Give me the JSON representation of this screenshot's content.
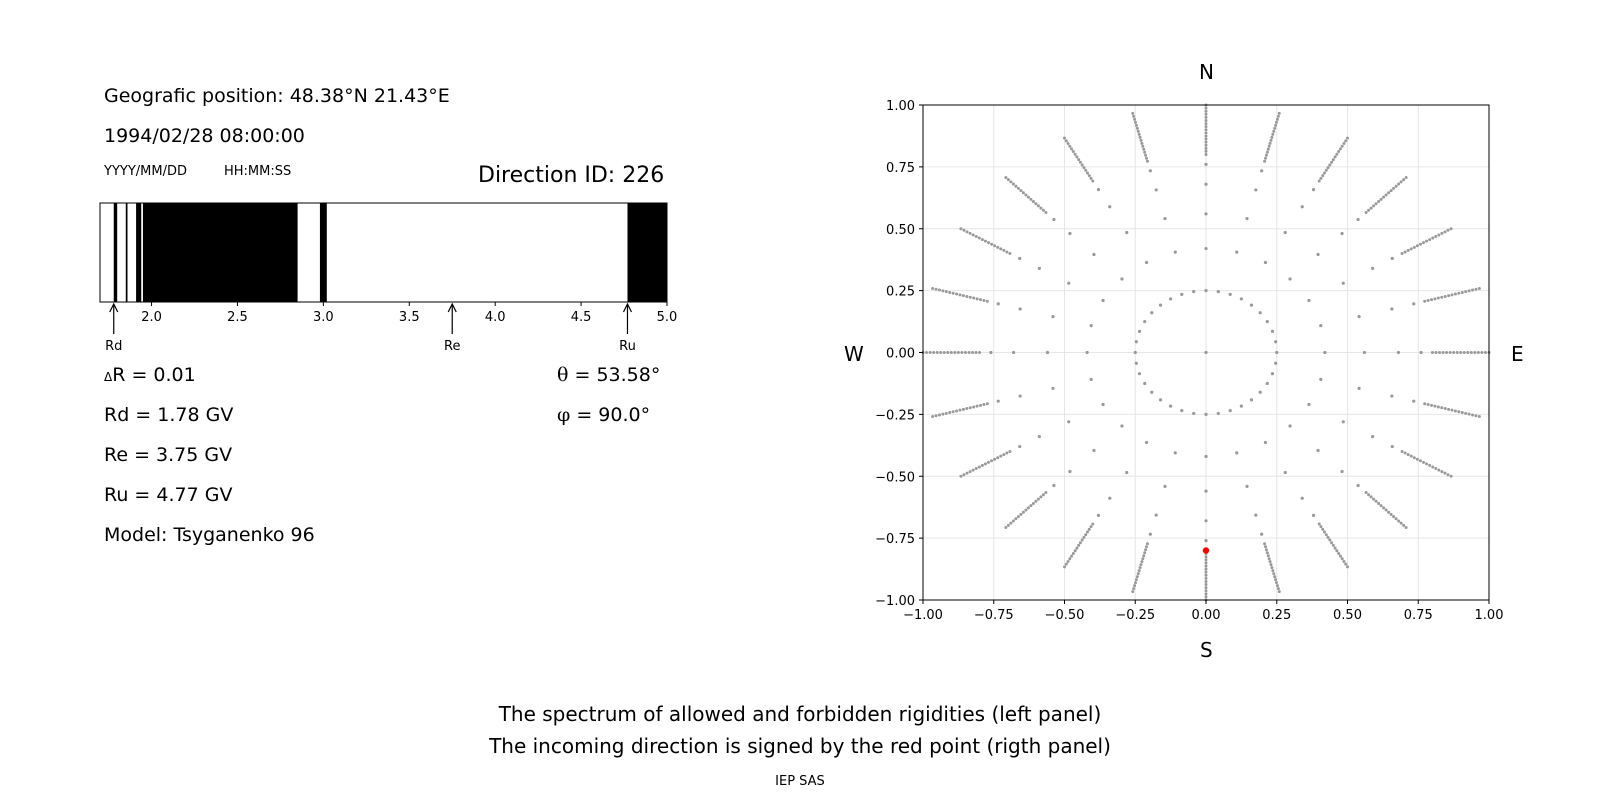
{
  "left_panel": {
    "position": "Geografic position: 48.38°N 21.43°E",
    "datetime": "1994/02/28 08:00:00",
    "date_format": "YYYY/MM/DD",
    "time_format": "HH:MM:SS",
    "direction_id": "Direction ID: 226",
    "delta_r": "R = 0.01",
    "delta_symbol": "Δ",
    "rd": "Rd = 1.78 GV",
    "re": "Re = 3.75 GV",
    "ru": "Ru = 4.77 GV",
    "model": "Model: Tsyganenko 96",
    "theta_symbol": "θ",
    "theta": " = 53.58°",
    "phi_symbol": "φ",
    "phi": " = 90.0°",
    "marker_rd": "Rd",
    "marker_re": "Re",
    "marker_ru": "Ru"
  },
  "right_panel": {
    "north": "N",
    "south": "S",
    "west": "W",
    "east": "E"
  },
  "caption": {
    "line1": "The spectrum of allowed and forbidden rigidities (left panel)",
    "line2": "The incoming direction is signed by the red point (rigth panel)",
    "credit": "IEP SAS"
  },
  "chart_data": [
    {
      "type": "bar",
      "subtype": "rigidity-spectrum",
      "xlim": [
        1.7,
        5.0
      ],
      "xticks": [
        "2.0",
        "2.5",
        "3.0",
        "3.5",
        "4.0",
        "4.5",
        "5.0"
      ],
      "xtick_values": [
        2.0,
        2.5,
        3.0,
        3.5,
        4.0,
        4.5,
        5.0
      ],
      "forbidden_intervals": [
        [
          1.78,
          1.8
        ],
        [
          1.85,
          1.86
        ],
        [
          1.91,
          1.94
        ],
        [
          1.95,
          2.85
        ],
        [
          2.98,
          3.02
        ],
        [
          4.77,
          5.0
        ]
      ],
      "markers": {
        "Rd": 1.78,
        "Re": 3.75,
        "Ru": 4.77
      },
      "colors": {
        "forbidden": "#000000",
        "allowed": "#ffffff"
      }
    },
    {
      "type": "scatter",
      "xlim": [
        -1.0,
        1.0
      ],
      "ylim": [
        -1.0,
        1.0
      ],
      "xticks": [
        "−1.00",
        "−0.75",
        "−0.50",
        "−0.25",
        "0.00",
        "0.25",
        "0.50",
        "0.75",
        "1.00"
      ],
      "yticks": [
        "1.00",
        "0.75",
        "0.50",
        "0.25",
        "0.00",
        "−0.25",
        "−0.50",
        "−0.75",
        "−1.00"
      ],
      "tick_values": [
        -1.0,
        -0.75,
        -0.5,
        -0.25,
        0.0,
        0.25,
        0.5,
        0.75,
        1.0
      ],
      "grid": true,
      "series": [
        {
          "role": "grid-directions",
          "color": "#999999",
          "rings": [
            {
              "radius": 0.25,
              "azimuth_step_deg": 10
            },
            {
              "radius": 0.42,
              "azimuth_step_deg": 15
            },
            {
              "radius": 0.56,
              "azimuth_step_deg": 15
            },
            {
              "radius": 0.68,
              "azimuth_step_deg": 15
            },
            {
              "radius": 0.76,
              "azimuth_step_deg": 15
            }
          ],
          "spokes": {
            "azimuth_step_deg": 15,
            "r_start": 0.8,
            "r_end": 1.0,
            "r_step": 0.0125
          }
        },
        {
          "role": "incoming-direction",
          "color": "#ff0000",
          "points": [
            {
              "x": 0.0,
              "y": -0.8
            }
          ]
        }
      ]
    }
  ]
}
